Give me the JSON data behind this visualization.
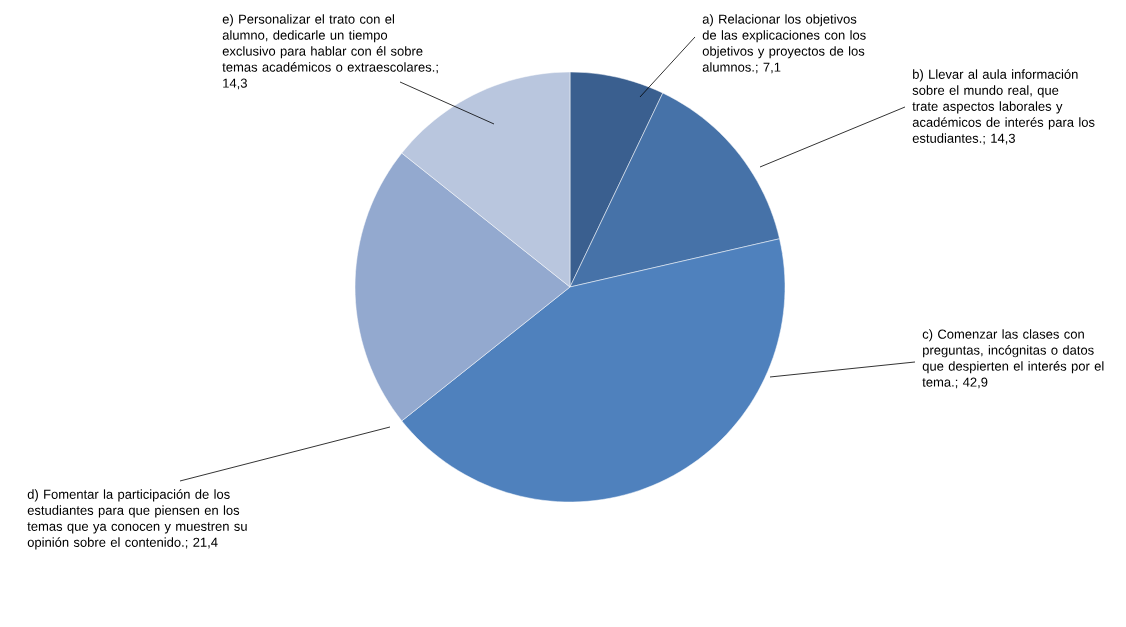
{
  "chart_data": {
    "type": "pie",
    "categories": [
      "a) Relacionar los objetivos de las explicaciones con los objetivos y proyectos de los alumnos.",
      "b) Llevar al aula información sobre el mundo real, que trate aspectos laborales y académicos de interés para los estudiantes.",
      "c) Comenzar las clases con preguntas, incógnitas o datos que despierten el interés por el tema.",
      "d) Fomentar la participación de los estudiantes para que piensen en los temas que ya conocen y muestren su opinión sobre el contenido.",
      "e) Personalizar el trato con el alumno, dedicarle un tiempo exclusivo para hablar con él sobre temas académicos o extraescolares."
    ],
    "values": [
      7.1,
      14.3,
      42.9,
      21.4,
      14.3
    ],
    "value_labels": [
      "; 7,1",
      "; 14,3",
      "; 42,9",
      "; 21,4",
      "; 14,3"
    ],
    "colors": [
      "#3a5f8f",
      "#4672a8",
      "#4f81bd",
      "#93a9cf",
      "#b9c6de"
    ]
  }
}
